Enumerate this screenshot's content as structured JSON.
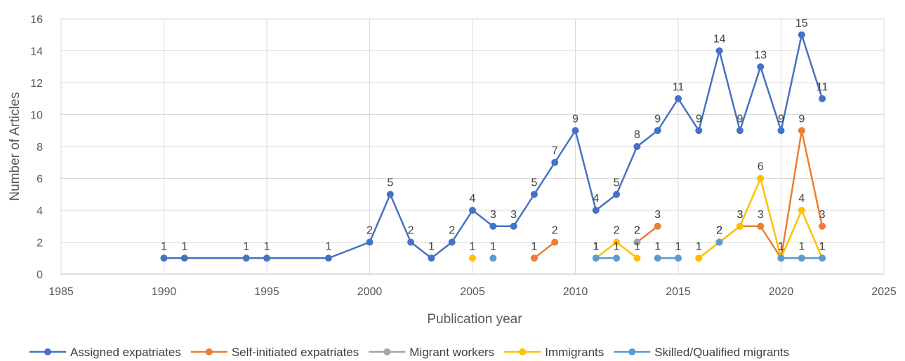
{
  "chart_data": {
    "type": "line",
    "title": "",
    "xlabel": "Publication year",
    "ylabel": "Number of Articles",
    "xlim": [
      1985,
      2025
    ],
    "ylim": [
      0,
      16
    ],
    "x_ticks": [
      1985,
      1990,
      1995,
      2000,
      2005,
      2010,
      2015,
      2020,
      2025
    ],
    "y_ticks": [
      0,
      2,
      4,
      6,
      8,
      10,
      12,
      14,
      16
    ],
    "grid": true,
    "legend_position": "bottom",
    "series": [
      {
        "name": "Assigned expatriates",
        "color": "#4472C4",
        "data_labels": true,
        "points": [
          [
            1990,
            1
          ],
          [
            1991,
            1
          ],
          [
            1994,
            1
          ],
          [
            1995,
            1
          ],
          [
            1998,
            1
          ],
          [
            2000,
            2
          ],
          [
            2001,
            5
          ],
          [
            2002,
            2
          ],
          [
            2003,
            1
          ],
          [
            2004,
            2
          ],
          [
            2005,
            4
          ],
          [
            2006,
            3
          ],
          [
            2007,
            3
          ],
          [
            2008,
            5
          ],
          [
            2009,
            7
          ],
          [
            2010,
            9
          ],
          [
            2011,
            4
          ],
          [
            2012,
            5
          ],
          [
            2013,
            8
          ],
          [
            2014,
            9
          ],
          [
            2015,
            11
          ],
          [
            2016,
            9
          ],
          [
            2017,
            14
          ],
          [
            2018,
            9
          ],
          [
            2019,
            13
          ],
          [
            2020,
            9
          ],
          [
            2021,
            15
          ],
          [
            2022,
            11
          ]
        ]
      },
      {
        "name": "Self-initiated expatriates",
        "color": "#ED7D31",
        "data_labels": true,
        "points": [
          [
            2008,
            1
          ],
          [
            2009,
            2
          ],
          [
            null,
            null
          ],
          [
            2013,
            2
          ],
          [
            2014,
            3
          ],
          [
            null,
            null
          ],
          [
            2016,
            1
          ],
          [
            2017,
            2
          ],
          [
            2018,
            3
          ],
          [
            2019,
            3
          ],
          [
            2020,
            1
          ],
          [
            2021,
            9
          ],
          [
            2022,
            3
          ]
        ]
      },
      {
        "name": "Migrant workers",
        "color": "#A5A5A5",
        "data_labels": true,
        "points": [
          [
            2013,
            2
          ]
        ]
      },
      {
        "name": "Immigrants",
        "color": "#FFC000",
        "data_labels": true,
        "points": [
          [
            2005,
            1
          ],
          [
            null,
            null
          ],
          [
            2011,
            1
          ],
          [
            2012,
            2
          ],
          [
            2013,
            1
          ],
          [
            null,
            null
          ],
          [
            2016,
            1
          ],
          [
            2017,
            2
          ],
          [
            2018,
            3
          ],
          [
            2019,
            6
          ],
          [
            2020,
            1
          ],
          [
            2021,
            4
          ],
          [
            2022,
            1
          ]
        ]
      },
      {
        "name": "Skilled/Qualified migrants",
        "color": "#5B9BD5",
        "data_labels": true,
        "points": [
          [
            2006,
            1
          ],
          [
            null,
            null
          ],
          [
            2011,
            1
          ],
          [
            2012,
            1
          ],
          [
            null,
            null
          ],
          [
            2014,
            1
          ],
          [
            2015,
            1
          ],
          [
            null,
            null
          ],
          [
            2017,
            2
          ],
          [
            null,
            null
          ],
          [
            2020,
            1
          ],
          [
            2021,
            1
          ],
          [
            2022,
            1
          ]
        ]
      }
    ]
  }
}
